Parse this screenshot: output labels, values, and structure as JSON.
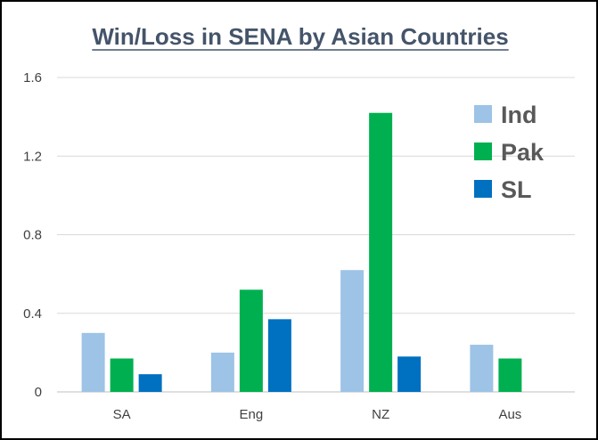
{
  "chart_data": {
    "type": "bar",
    "title": "Win/Loss in SENA by Asian Countries",
    "xlabel": "",
    "ylabel": "",
    "categories": [
      "SA",
      "Eng",
      "NZ",
      "Aus"
    ],
    "series": [
      {
        "name": "Ind",
        "color": "#9dc3e6",
        "values": [
          0.3,
          0.2,
          0.62,
          0.24
        ]
      },
      {
        "name": "Pak",
        "color": "#00b050",
        "values": [
          0.17,
          0.52,
          1.42,
          0.17
        ]
      },
      {
        "name": "SL",
        "color": "#0070c0",
        "values": [
          0.09,
          0.37,
          0.18,
          null
        ]
      }
    ],
    "ylim": [
      0,
      1.6
    ],
    "yticks": [
      "0",
      "0.4",
      "0.8",
      "1.2",
      "1.6"
    ],
    "grid": true,
    "legend_position": "top-right"
  }
}
